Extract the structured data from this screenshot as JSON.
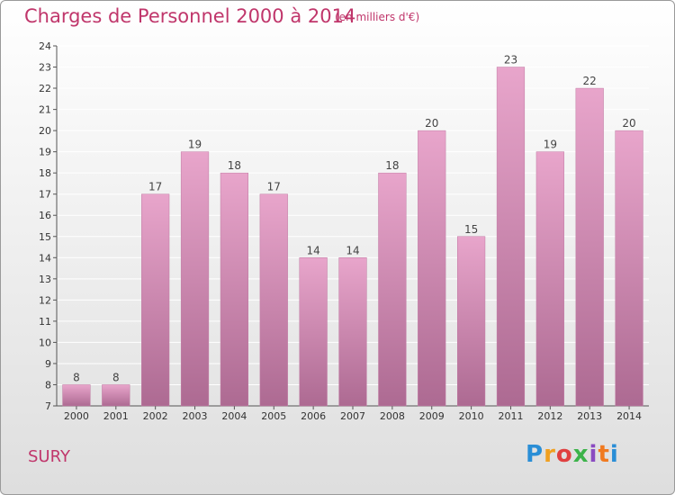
{
  "header": {
    "title": "Charges de Personnel 2000 à 2014",
    "subtitle": "(en milliers d'€)"
  },
  "footer": {
    "town": "SURY",
    "logo_text": "Proxiti"
  },
  "colors": {
    "title": "#c0366b",
    "bar_top": "#e8a5cb",
    "bar_bottom": "#ad6a92",
    "grid": "#ffffff"
  },
  "chart_data": {
    "type": "bar",
    "title": "Charges de Personnel 2000 à 2014",
    "subtitle": "(en milliers d'€)",
    "categories": [
      "2000",
      "2001",
      "2002",
      "2003",
      "2004",
      "2005",
      "2006",
      "2007",
      "2008",
      "2009",
      "2010",
      "2011",
      "2012",
      "2013",
      "2014"
    ],
    "values": [
      8,
      8,
      17,
      19,
      18,
      17,
      14,
      14,
      18,
      20,
      15,
      23,
      19,
      22,
      20
    ],
    "ylim": [
      7,
      24
    ],
    "yticks": [
      7,
      8,
      9,
      10,
      11,
      12,
      13,
      14,
      15,
      16,
      17,
      18,
      19,
      20,
      21,
      22,
      23,
      24
    ],
    "grid": true,
    "data_labels": true,
    "xlabel": "",
    "ylabel": ""
  }
}
